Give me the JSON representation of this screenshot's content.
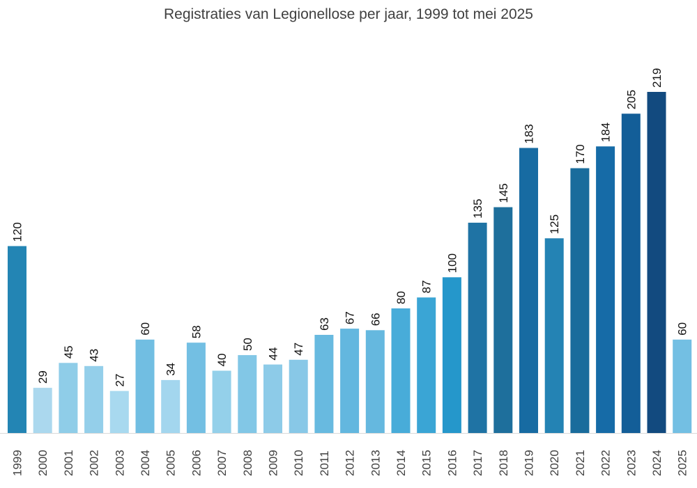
{
  "chart_data": {
    "type": "bar",
    "title": "Registraties van Legionellose per jaar, 1999 tot mei 2025",
    "xlabel": "",
    "ylabel": "",
    "ylim": [
      0,
      219
    ],
    "grid": false,
    "categories": [
      "1999",
      "2000",
      "2001",
      "2002",
      "2003",
      "2004",
      "2005",
      "2006",
      "2007",
      "2008",
      "2009",
      "2010",
      "2011",
      "2012",
      "2013",
      "2014",
      "2015",
      "2016",
      "2017",
      "2018",
      "2019",
      "2020",
      "2021",
      "2022",
      "2023",
      "2024",
      "2025"
    ],
    "values": [
      120,
      29,
      45,
      43,
      27,
      60,
      34,
      58,
      40,
      50,
      44,
      47,
      63,
      67,
      66,
      80,
      87,
      100,
      135,
      145,
      183,
      125,
      170,
      184,
      205,
      219,
      60
    ],
    "colors": [
      "#2385B4",
      "#ABD8EE",
      "#8FCDE8",
      "#94CFEA",
      "#A8D9EF",
      "#71BEE2",
      "#A3D6EE",
      "#73BFE3",
      "#94D0EA",
      "#82C7E6",
      "#8DCBE8",
      "#88C8E7",
      "#68BAE0",
      "#63B7DF",
      "#65B8DF",
      "#48ACD9",
      "#3AA5D5",
      "#2597CB",
      "#1F73A4",
      "#1E6F9C",
      "#176BA2",
      "#2483B4",
      "#196C9C",
      "#166BA7",
      "#135E98",
      "#124A7F",
      "#73BFE3"
    ]
  }
}
